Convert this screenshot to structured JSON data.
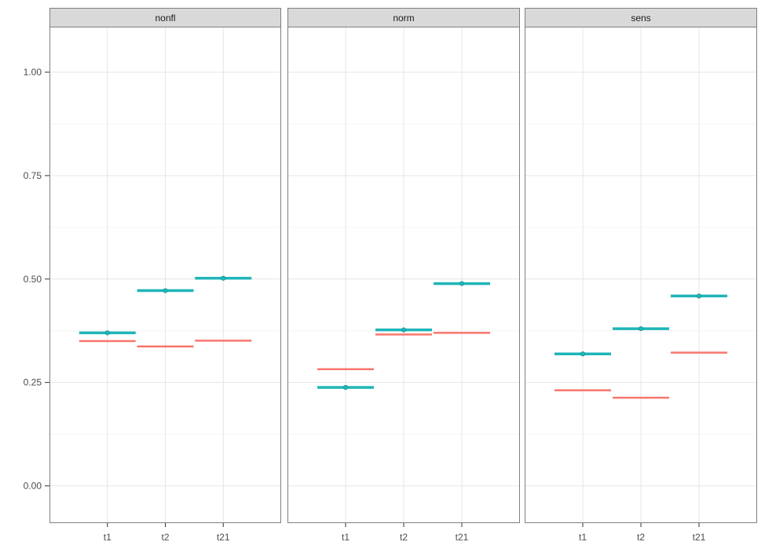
{
  "chart_data": {
    "type": "line",
    "facets": [
      "nonfl",
      "norm",
      "sens"
    ],
    "categories": [
      "t1",
      "t2",
      "t21"
    ],
    "ylim": [
      -0.09,
      1.11
    ],
    "yticks": [
      0.0,
      0.25,
      0.5,
      0.75,
      1.0
    ],
    "ytick_labels": [
      "0.00",
      "0.25",
      "0.50",
      "0.75",
      "1.00"
    ],
    "grid": true,
    "series": [
      {
        "color": "#f8766d",
        "values": {
          "nonfl": [
            0.35,
            0.337,
            0.351
          ],
          "norm": [
            0.282,
            0.366,
            0.37
          ],
          "sens": [
            0.231,
            0.213,
            0.322
          ]
        }
      },
      {
        "color": "#1fb5b8",
        "values": {
          "nonfl": [
            0.37,
            0.472,
            0.502
          ],
          "norm": [
            0.238,
            0.377,
            0.489
          ],
          "sens": [
            0.319,
            0.38,
            0.459
          ]
        }
      }
    ]
  }
}
